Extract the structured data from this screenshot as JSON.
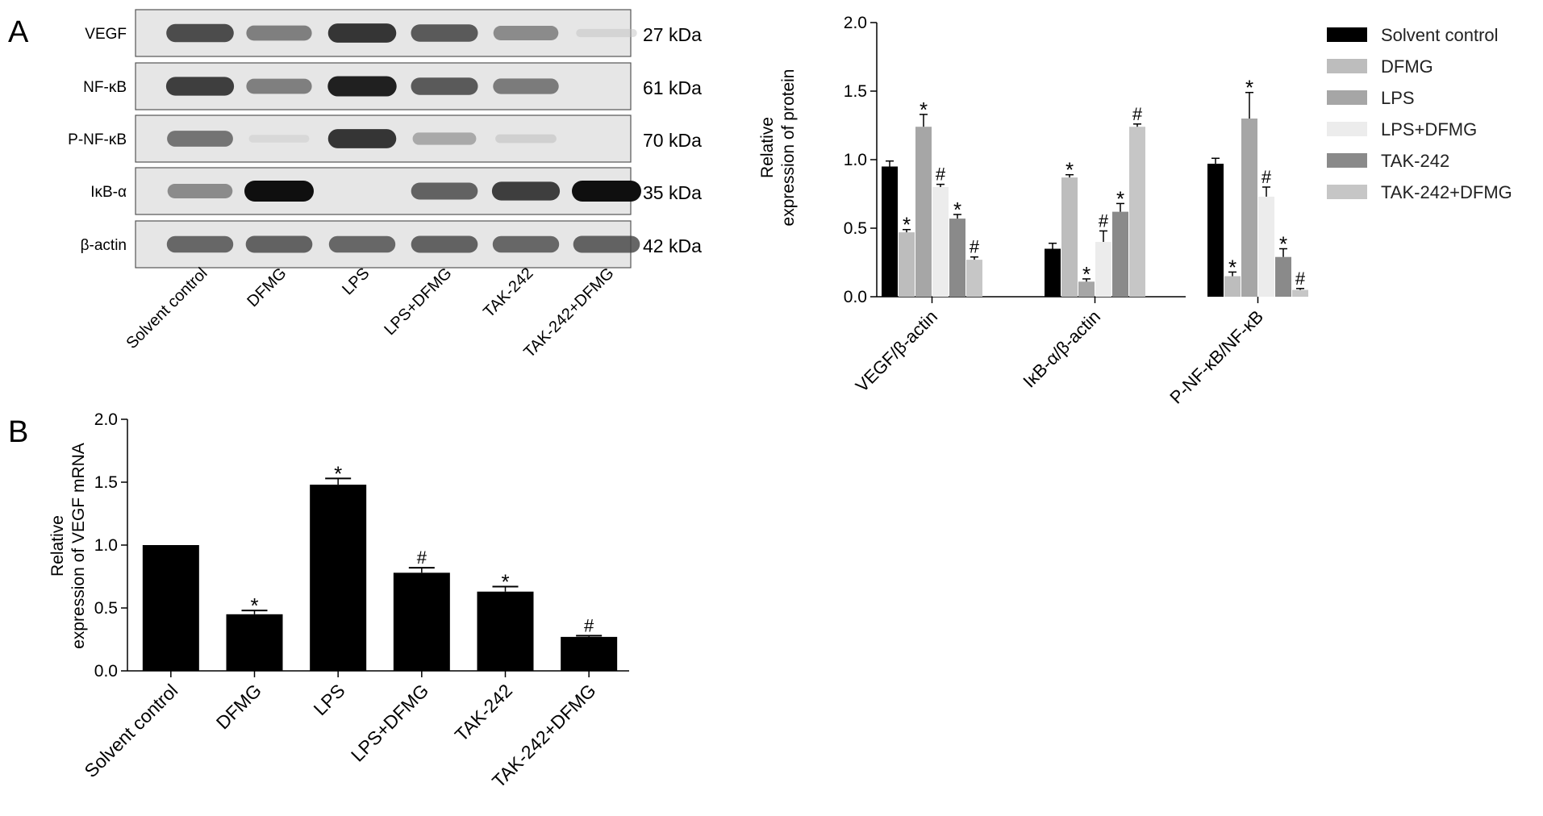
{
  "panel_labels": [
    "A",
    "B"
  ],
  "western_blot": {
    "lanes": [
      "Solvent control",
      "DFMG",
      "LPS",
      "LPS+DFMG",
      "TAK-242",
      "TAK-242+DFMG"
    ],
    "rows": [
      {
        "protein": "VEGF",
        "size": "27 kDa",
        "intensity": [
          0.8,
          0.6,
          0.88,
          0.75,
          0.55,
          0.12
        ]
      },
      {
        "protein": "NF-κB",
        "size": "61 kDa",
        "intensity": [
          0.85,
          0.6,
          0.95,
          0.75,
          0.62,
          0.0
        ]
      },
      {
        "protein": "P-NF-κB",
        "size": "70 kDa",
        "intensity": [
          0.65,
          0.08,
          0.88,
          0.4,
          0.15,
          0.0
        ]
      },
      {
        "protein": "IκB-α",
        "size": "35 kDa",
        "intensity": [
          0.55,
          1.0,
          0.0,
          0.72,
          0.85,
          1.0
        ]
      },
      {
        "protein": "β-actin",
        "size": "42 kDa",
        "intensity": [
          0.7,
          0.72,
          0.7,
          0.72,
          0.7,
          0.72
        ]
      }
    ]
  },
  "chart_data": [
    {
      "type": "bar",
      "panel": "A",
      "categories": [
        "VEGF/β-actin",
        "IκB-α/β-actin",
        "P-NF-κB/NF-κB"
      ],
      "ylabel_lines": [
        "Relative",
        "expression of protein"
      ],
      "ylim": [
        0,
        2.0
      ],
      "yticks": [
        "0.0",
        "0.5",
        "1.0",
        "1.5",
        "2.0"
      ],
      "legend_position": "right",
      "series": [
        {
          "name": "Solvent control",
          "color": "#000000",
          "values": [
            0.95,
            0.35,
            0.97
          ],
          "errors": [
            0.04,
            0.04,
            0.04
          ],
          "marks": [
            "",
            "",
            ""
          ]
        },
        {
          "name": "DFMG",
          "color": "#bdbdbd",
          "values": [
            0.47,
            0.87,
            0.15
          ],
          "errors": [
            0.02,
            0.02,
            0.03
          ],
          "marks": [
            "*",
            "*",
            "*"
          ]
        },
        {
          "name": "LPS",
          "color": "#a6a6a6",
          "values": [
            1.24,
            0.11,
            1.3
          ],
          "errors": [
            0.09,
            0.02,
            0.19
          ],
          "marks": [
            "*",
            "*",
            "*"
          ]
        },
        {
          "name": "LPS+DFMG",
          "color": "#ececec",
          "values": [
            0.8,
            0.4,
            0.73
          ],
          "errors": [
            0.02,
            0.08,
            0.07
          ],
          "marks": [
            "#",
            "#",
            "#"
          ]
        },
        {
          "name": "TAK-242",
          "color": "#8a8a8a",
          "values": [
            0.57,
            0.62,
            0.29
          ],
          "errors": [
            0.03,
            0.06,
            0.06
          ],
          "marks": [
            "*",
            "*",
            "*"
          ]
        },
        {
          "name": "TAK-242+DFMG",
          "color": "#c6c6c6",
          "values": [
            0.27,
            1.24,
            0.05
          ],
          "errors": [
            0.02,
            0.02,
            0.01
          ],
          "marks": [
            "#",
            "#",
            "#"
          ]
        }
      ]
    },
    {
      "type": "bar",
      "panel": "B",
      "categories": [
        "Solvent control",
        "DFMG",
        "LPS",
        "LPS+DFMG",
        "TAK-242",
        "TAK-242+DFMG"
      ],
      "ylabel_lines": [
        "Relative",
        "expression of VEGF mRNA"
      ],
      "ylim": [
        0,
        2.0
      ],
      "yticks": [
        "0.0",
        "0.5",
        "1.0",
        "1.5",
        "2.0"
      ],
      "color": "#000000",
      "values": [
        1.0,
        0.45,
        1.48,
        0.78,
        0.63,
        0.27
      ],
      "errors": [
        0.0,
        0.03,
        0.05,
        0.04,
        0.04,
        0.01
      ],
      "marks": [
        "",
        "*",
        "*",
        "#",
        "*",
        "#"
      ]
    }
  ]
}
